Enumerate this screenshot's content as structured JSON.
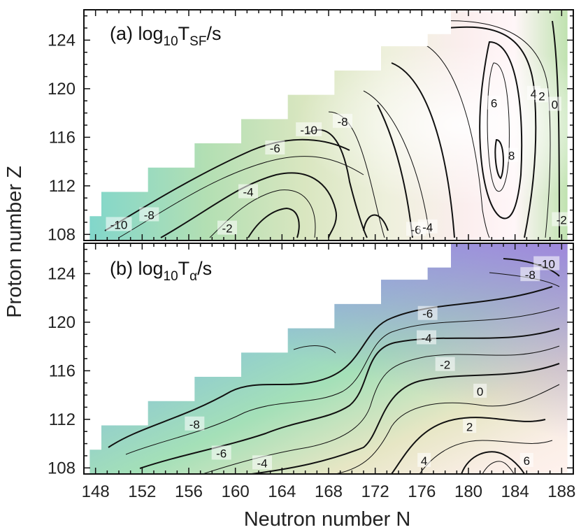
{
  "chart_data": {
    "type": "heatmap",
    "xlabel": "Neutron number N",
    "ylabel": "Proton number Z",
    "xlim": [
      147,
      189
    ],
    "x_ticks": [
      148,
      152,
      156,
      160,
      164,
      168,
      172,
      176,
      180,
      184,
      188
    ],
    "y_ticks": [
      108,
      112,
      116,
      120,
      124
    ],
    "coverage_edge": [
      {
        "z": 108,
        "n_min": 148
      },
      {
        "z": 109,
        "n_min": 148
      },
      {
        "z": 110,
        "n_min": 149
      },
      {
        "z": 111,
        "n_min": 149
      },
      {
        "z": 112,
        "n_min": 153
      },
      {
        "z": 113,
        "n_min": 153
      },
      {
        "z": 114,
        "n_min": 157
      },
      {
        "z": 115,
        "n_min": 157
      },
      {
        "z": 116,
        "n_min": 161
      },
      {
        "z": 117,
        "n_min": 161
      },
      {
        "z": 118,
        "n_min": 165
      },
      {
        "z": 119,
        "n_min": 165
      },
      {
        "z": 120,
        "n_min": 169
      },
      {
        "z": 121,
        "n_min": 169
      },
      {
        "z": 122,
        "n_min": 173
      },
      {
        "z": 123,
        "n_min": 173
      },
      {
        "z": 124,
        "n_min": 177
      },
      {
        "z": 125,
        "n_min": 179
      },
      {
        "z": 126,
        "n_min": 179
      }
    ],
    "n_max": 188,
    "panels": [
      {
        "id": "a",
        "prefix": "(a) log",
        "base": "10",
        "quantity": "T",
        "subscript": "SF",
        "unit": "/s",
        "ylim": [
          107.5,
          126.5
        ],
        "contour_labels": [
          {
            "text": "-10",
            "n": 150.0,
            "z": 108.8
          },
          {
            "text": "-8",
            "n": 152.6,
            "z": 109.6
          },
          {
            "text": "-2",
            "n": 159.3,
            "z": 108.5
          },
          {
            "text": "-4",
            "n": 161.1,
            "z": 111.5
          },
          {
            "text": "-6",
            "n": 163.4,
            "z": 115.1
          },
          {
            "text": "-10",
            "n": 166.3,
            "z": 116.6
          },
          {
            "text": "-8",
            "n": 169.2,
            "z": 117.3
          },
          {
            "text": "-6",
            "n": 175.5,
            "z": 108.4
          },
          {
            "text": "-4",
            "n": 176.5,
            "z": 108.6
          },
          {
            "text": "-2",
            "n": 188.0,
            "z": 109.2
          },
          {
            "text": "6",
            "n": 182.2,
            "z": 118.8
          },
          {
            "text": "8",
            "n": 183.7,
            "z": 114.5
          },
          {
            "text": "4",
            "n": 185.6,
            "z": 119.6
          },
          {
            "text": "2",
            "n": 186.3,
            "z": 119.4
          },
          {
            "text": "0",
            "n": 187.4,
            "z": 118.7
          }
        ]
      },
      {
        "id": "b",
        "prefix": "(b) log",
        "base": "10",
        "quantity": "T",
        "subscript": "α",
        "unit": "/s",
        "ylim": [
          107.5,
          126.5
        ],
        "contour_labels": [
          {
            "text": "-8",
            "n": 156.5,
            "z": 111.6
          },
          {
            "text": "-6",
            "n": 158.8,
            "z": 109.2
          },
          {
            "text": "-4",
            "n": 162.3,
            "z": 108.4
          },
          {
            "text": "-10",
            "n": 186.7,
            "z": 124.8
          },
          {
            "text": "-8",
            "n": 185.3,
            "z": 123.9
          },
          {
            "text": "-6",
            "n": 176.5,
            "z": 120.7
          },
          {
            "text": "-4",
            "n": 176.4,
            "z": 118.7
          },
          {
            "text": "-2",
            "n": 178.0,
            "z": 116.5
          },
          {
            "text": "0",
            "n": 181.0,
            "z": 114.3
          },
          {
            "text": "2",
            "n": 180.1,
            "z": 111.4
          },
          {
            "text": "4",
            "n": 176.2,
            "z": 108.6
          },
          {
            "text": "6",
            "n": 185.0,
            "z": 108.6
          }
        ]
      }
    ]
  }
}
